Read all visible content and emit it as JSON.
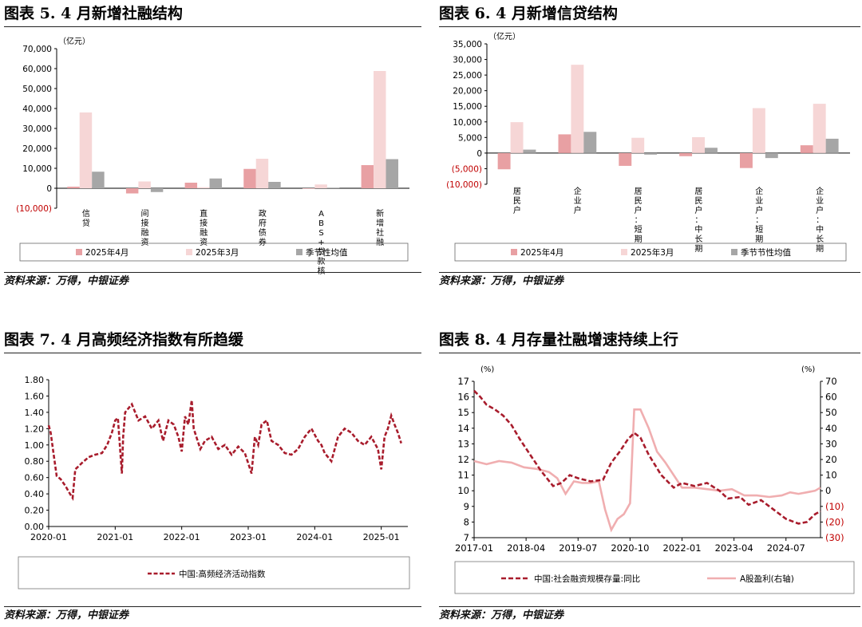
{
  "colors": {
    "apr": "#e8a0a3",
    "mar": "#f6d6d6",
    "avg": "#a6a6a6",
    "neg": "#c00000",
    "index": "#a81c2c",
    "equity": "#f0aeb0"
  },
  "chart5": {
    "title": "图表 5. 4 月新增社融结构",
    "source": "资料来源：万得，中银证券",
    "chart_data": {
      "type": "bar",
      "unit": "（亿元）",
      "categories": [
        "信贷",
        "间接融资",
        "直接融资",
        "政府债券",
        "ABS+贷款核销",
        "新增社融"
      ],
      "series": [
        {
          "name": "2025年4月",
          "values": [
            800,
            -2600,
            2800,
            9700,
            -80,
            11600
          ]
        },
        {
          "name": "2025年3月",
          "values": [
            38000,
            3400,
            500,
            14800,
            1900,
            58800
          ]
        },
        {
          "name": "季节性均值",
          "values": [
            8300,
            -1900,
            4900,
            3200,
            300,
            14600
          ]
        }
      ],
      "y_ticks": [
        "70,000",
        "60,000",
        "50,000",
        "40,000",
        "30,000",
        "20,000",
        "10,000",
        "0",
        "(10,000)"
      ],
      "ylim": [
        -10000,
        70000
      ],
      "legend": "bottom"
    }
  },
  "chart6": {
    "title": "图表 6. 4 月新增信贷结构",
    "source": "资料来源：万得，中银证券",
    "chart_data": {
      "type": "bar",
      "unit": "（亿元）",
      "categories": [
        "居民户",
        "企业户",
        "居民户：短期",
        "居民户：中长期",
        "企业户：短期",
        "企业户：中长期"
      ],
      "series": [
        {
          "name": "2025年4月",
          "values": [
            -5200,
            6000,
            -4100,
            -1000,
            -4800,
            2500
          ]
        },
        {
          "name": "2025年3月",
          "values": [
            9900,
            28300,
            4900,
            5100,
            14400,
            15800
          ]
        },
        {
          "name": "季节节性均值",
          "values": [
            1100,
            6800,
            -500,
            1700,
            -1600,
            4600
          ]
        }
      ],
      "y_ticks": [
        "35,000",
        "30,000",
        "25,000",
        "20,000",
        "15,000",
        "10,000",
        "5,000",
        "0",
        "(5,000)",
        "(10,000)"
      ],
      "ylim": [
        -10000,
        35000
      ],
      "legend": "bottom"
    }
  },
  "chart7": {
    "title": "图表 7. 4 月高频经济指数有所趋缓",
    "source": "资料来源：万得，中银证券",
    "chart_data": {
      "type": "line",
      "x_ticks": [
        "2020-01",
        "2021-01",
        "2022-01",
        "2023-01",
        "2024-01",
        "2025-01"
      ],
      "y_ticks": [
        "1.80",
        "1.60",
        "1.40",
        "1.20",
        "1.00",
        "0.80",
        "0.60",
        "0.40",
        "0.20",
        "0.00"
      ],
      "ylim": [
        0,
        1.8
      ],
      "xlim": [
        2020.0,
        2025.4
      ],
      "series": [
        {
          "name": "中国:高频经济活动指数",
          "x": [
            2020.0,
            2020.03,
            2020.08,
            2020.12,
            2020.18,
            2020.25,
            2020.32,
            2020.36,
            2020.4,
            2020.5,
            2020.6,
            2020.7,
            2020.8,
            2020.88,
            2020.95,
            2021.0,
            2021.04,
            2021.1,
            2021.12,
            2021.15,
            2021.2,
            2021.25,
            2021.35,
            2021.45,
            2021.55,
            2021.65,
            2021.72,
            2021.8,
            2021.88,
            2021.95,
            2022.0,
            2022.05,
            2022.1,
            2022.15,
            2022.18,
            2022.22,
            2022.28,
            2022.35,
            2022.45,
            2022.55,
            2022.65,
            2022.75,
            2022.85,
            2022.95,
            2023.05,
            2023.1,
            2023.15,
            2023.2,
            2023.28,
            2023.35,
            2023.45,
            2023.55,
            2023.65,
            2023.75,
            2023.85,
            2023.95,
            2024.05,
            2024.1,
            2024.15,
            2024.25,
            2024.35,
            2024.45,
            2024.55,
            2024.65,
            2024.75,
            2024.85,
            2024.95,
            2025.0,
            2025.05,
            2025.1,
            2025.15,
            2025.2,
            2025.25,
            2025.3
          ],
          "values": [
            1.24,
            1.15,
            0.85,
            0.62,
            0.58,
            0.5,
            0.4,
            0.35,
            0.7,
            0.78,
            0.85,
            0.88,
            0.9,
            1.0,
            1.15,
            1.3,
            1.33,
            0.65,
            1.1,
            1.4,
            1.45,
            1.5,
            1.3,
            1.35,
            1.2,
            1.3,
            1.05,
            1.3,
            1.25,
            1.1,
            0.92,
            1.35,
            1.25,
            1.55,
            1.2,
            1.1,
            0.95,
            1.05,
            1.1,
            0.95,
            1.0,
            0.88,
            0.98,
            0.9,
            0.65,
            1.1,
            1.0,
            1.25,
            1.3,
            1.05,
            1.0,
            0.9,
            0.88,
            0.95,
            1.1,
            1.2,
            1.05,
            1.0,
            0.9,
            0.8,
            1.1,
            1.2,
            1.15,
            1.05,
            1.0,
            1.1,
            0.95,
            0.7,
            1.1,
            1.2,
            1.36,
            1.25,
            1.15,
            1.02
          ]
        }
      ],
      "legend": "bottom"
    }
  },
  "chart8": {
    "title": "图表 8. 4 月存量社融增速持续上行",
    "source": "资料来源：万得，中银证券",
    "chart_data": {
      "type": "line",
      "left_unit": "(%)",
      "right_unit": "(%)",
      "x_ticks": [
        "2017-01",
        "2018-04",
        "2019-07",
        "2020-10",
        "2022-01",
        "2023-04",
        "2024-07"
      ],
      "xlim": [
        2017.0,
        2025.33
      ],
      "y_left_ticks": [
        "17",
        "16",
        "15",
        "14",
        "13",
        "12",
        "11",
        "10",
        "9",
        "8",
        "7"
      ],
      "y_left_lim": [
        7,
        17
      ],
      "y_right_ticks": [
        "70",
        "60",
        "50",
        "40",
        "30",
        "20",
        "10",
        "0",
        "(10)",
        "(20)",
        "(30)"
      ],
      "y_right_lim": [
        -30,
        70
      ],
      "series": [
        {
          "name": "中国:社会融资规模存量:同比",
          "axis": "left",
          "x": [
            2017.0,
            2017.15,
            2017.3,
            2017.5,
            2017.7,
            2017.9,
            2018.1,
            2018.3,
            2018.6,
            2018.9,
            2019.1,
            2019.3,
            2019.5,
            2019.8,
            2020.1,
            2020.3,
            2020.5,
            2020.7,
            2020.85,
            2021.0,
            2021.2,
            2021.5,
            2021.8,
            2022.0,
            2022.3,
            2022.6,
            2022.9,
            2023.1,
            2023.4,
            2023.6,
            2023.9,
            2024.2,
            2024.5,
            2024.8,
            2025.0,
            2025.2,
            2025.33
          ],
          "values": [
            16.4,
            16.0,
            15.5,
            15.2,
            14.8,
            14.2,
            13.3,
            12.5,
            11.3,
            10.3,
            10.5,
            11.0,
            10.8,
            10.6,
            10.7,
            11.8,
            12.5,
            13.3,
            13.7,
            13.4,
            12.3,
            11.0,
            10.2,
            10.5,
            10.3,
            10.5,
            10.0,
            9.5,
            9.6,
            9.1,
            9.4,
            8.8,
            8.2,
            7.9,
            8.0,
            8.5,
            8.7
          ]
        },
        {
          "name": "A股盈利(右轴)",
          "axis": "right",
          "x": [
            2017.0,
            2017.3,
            2017.6,
            2017.9,
            2018.2,
            2018.5,
            2018.8,
            2019.0,
            2019.2,
            2019.4,
            2019.6,
            2019.8,
            2020.0,
            2020.15,
            2020.3,
            2020.45,
            2020.6,
            2020.75,
            2020.85,
            2021.0,
            2021.2,
            2021.4,
            2021.6,
            2021.8,
            2022.0,
            2022.3,
            2022.6,
            2022.9,
            2023.2,
            2023.5,
            2023.8,
            2024.1,
            2024.4,
            2024.6,
            2024.8,
            2025.0,
            2025.2,
            2025.33
          ],
          "values": [
            19,
            17,
            19,
            18,
            15,
            14,
            12,
            8,
            -2,
            6,
            5,
            5,
            6,
            -12,
            -25,
            -18,
            -15,
            -8,
            52,
            52,
            40,
            25,
            18,
            10,
            2,
            2,
            1,
            0,
            1,
            -3,
            -3,
            -4,
            -3,
            -1,
            -2,
            -1,
            0,
            2
          ]
        }
      ],
      "legend": "bottom"
    }
  }
}
